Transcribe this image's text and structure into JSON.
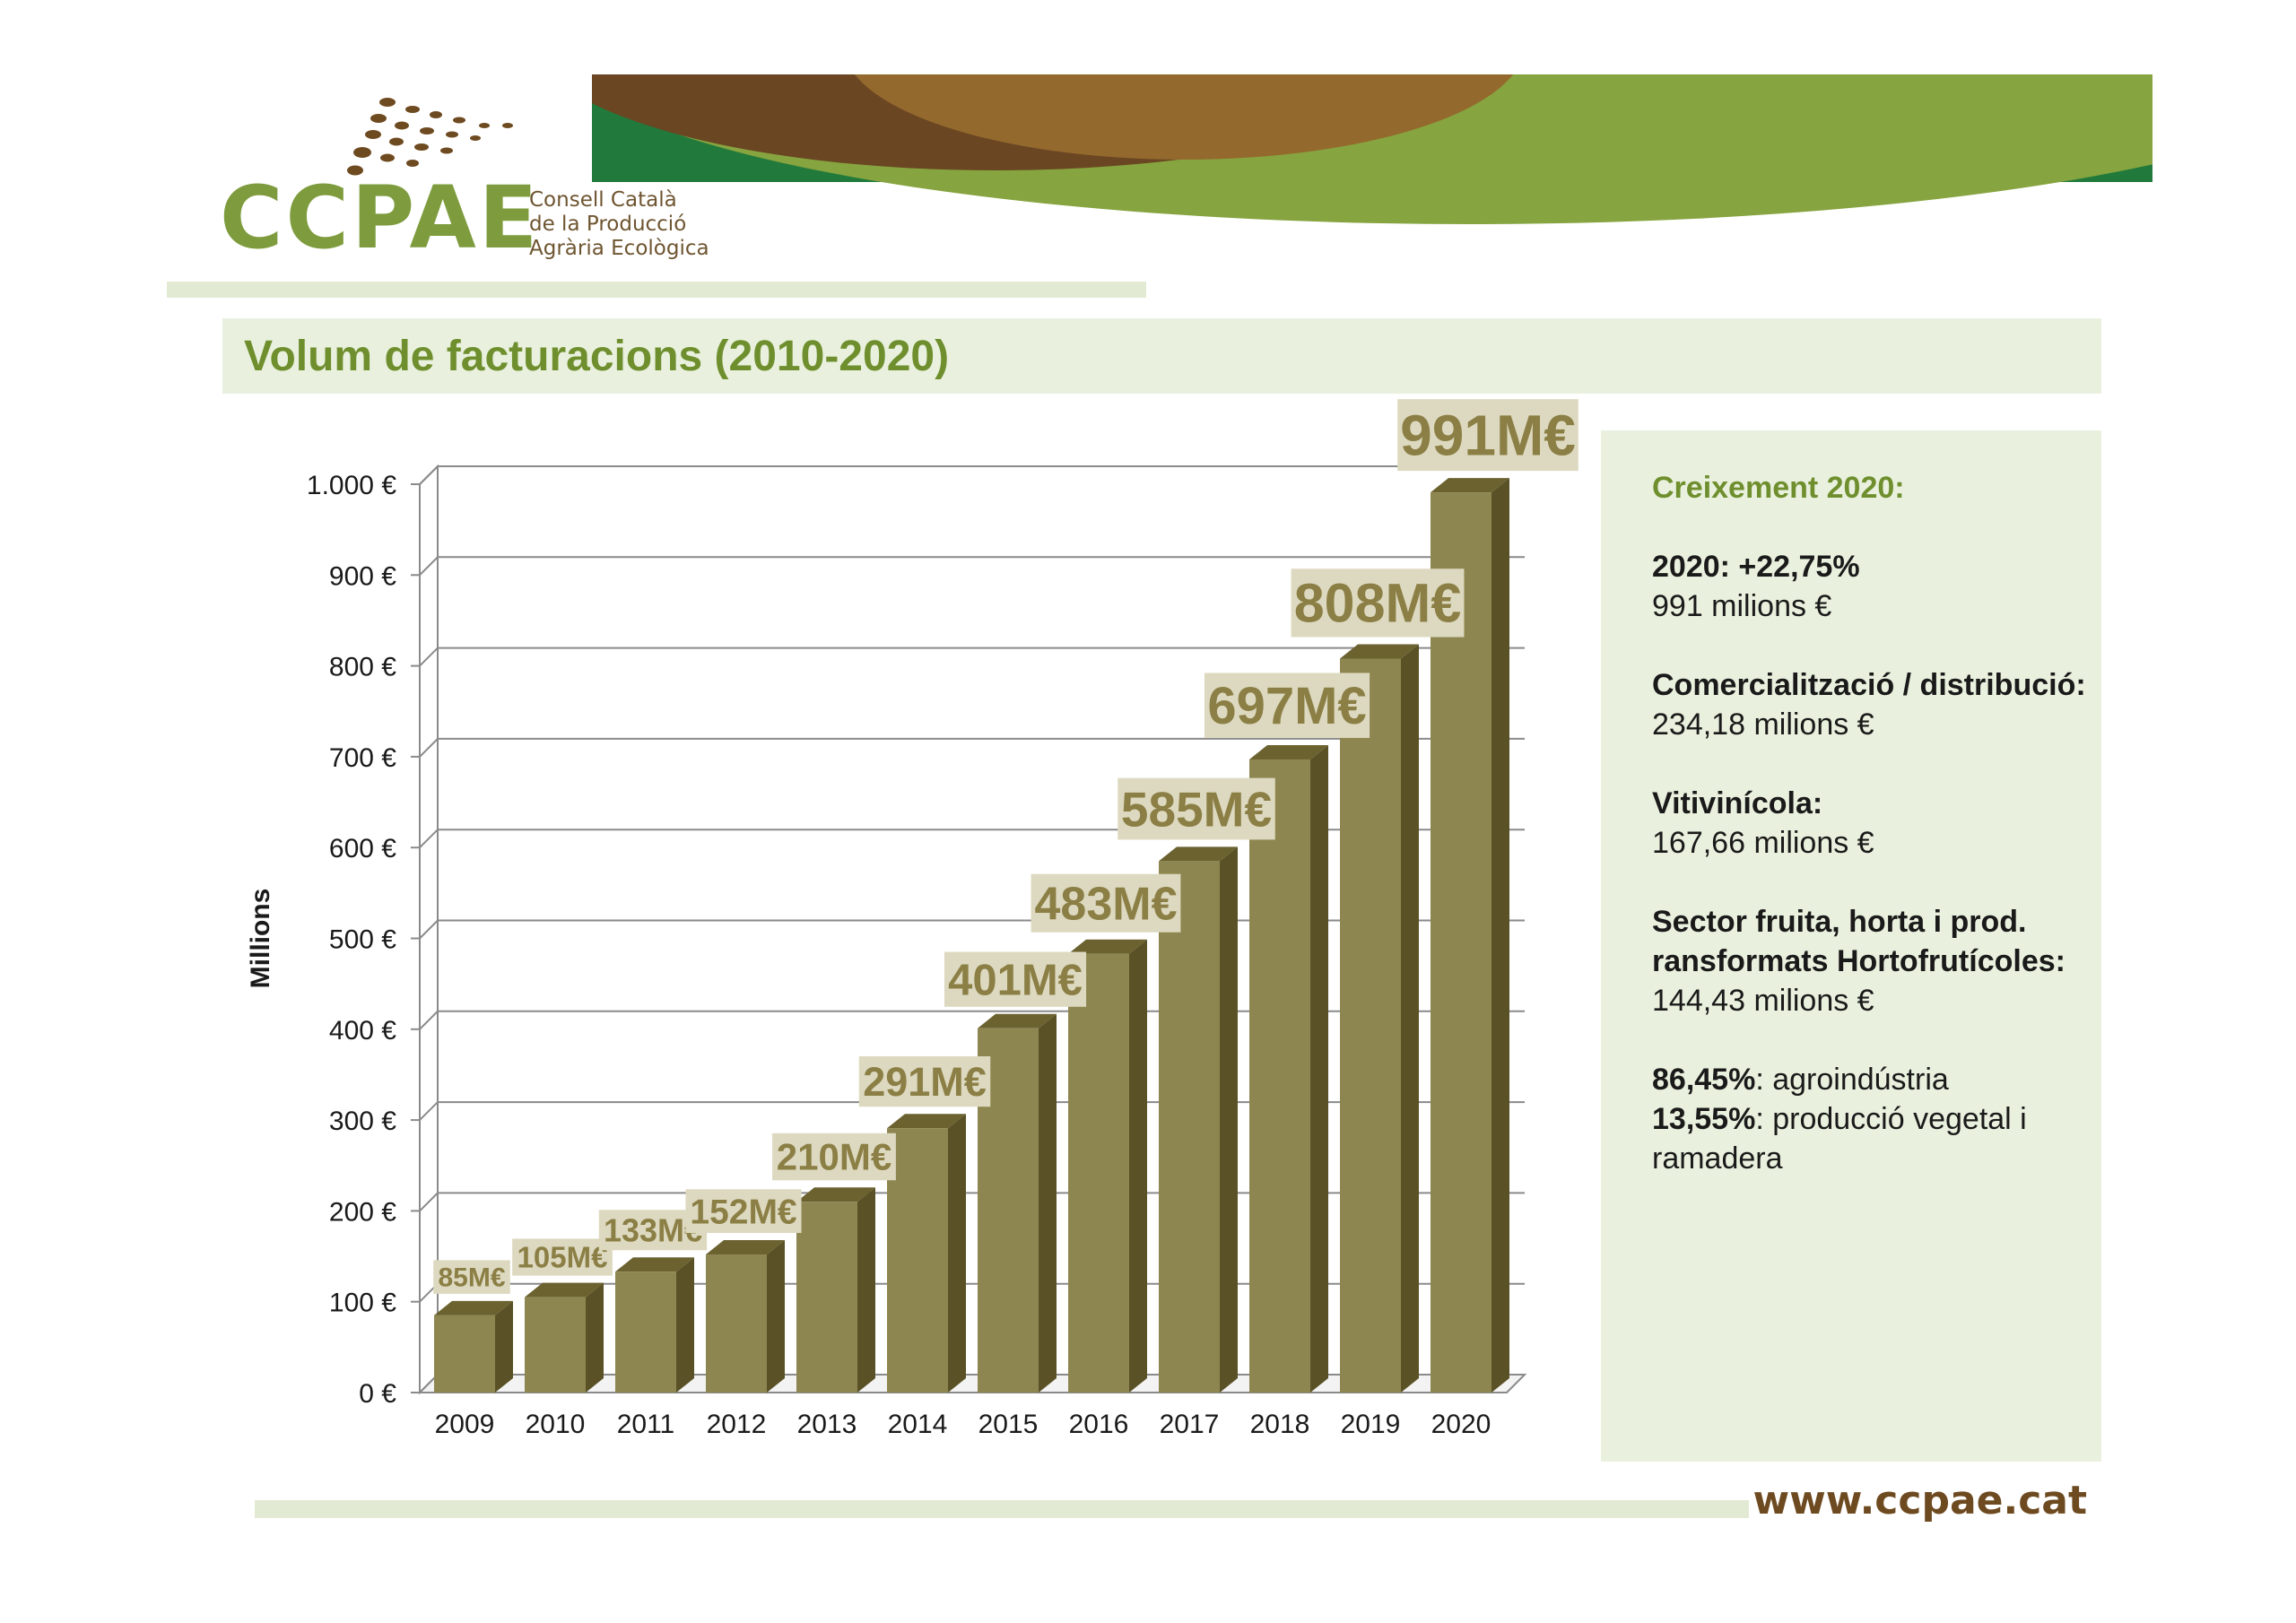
{
  "brand": {
    "acronym": "CCPAE",
    "subtitle_lines": [
      "Consell Català",
      "de la Producció",
      "Agrària Ecològica"
    ],
    "website": "www.ccpae.cat"
  },
  "colors": {
    "accent_green": "#7e9c3d",
    "dark_green": "#217a3c",
    "brown": "#6e4a20",
    "bar_face": "#8e8650",
    "bar_side": "#5a5226",
    "label_box": "#ddd9c0",
    "label_text": "#8b7f45",
    "panel_bg": "#e9f1de"
  },
  "page": {
    "title": "Volum de facturacions (2010-2020)"
  },
  "chart_data": {
    "type": "bar",
    "style": "3d-column",
    "categories": [
      "2009",
      "2010",
      "2011",
      "2012",
      "2013",
      "2014",
      "2015",
      "2016",
      "2017",
      "2018",
      "2019",
      "2020"
    ],
    "values": [
      85,
      105,
      133,
      152,
      210,
      291,
      401,
      483,
      585,
      697,
      808,
      991
    ],
    "data_labels": [
      "85M€",
      "105M€",
      "133M€",
      "152M€",
      "210M€",
      "291M€",
      "401M€",
      "483M€",
      "585M€",
      "697M€",
      "808M€",
      "991M€"
    ],
    "ylabel": "Millions",
    "xlabel": "",
    "ylim": [
      0,
      1000
    ],
    "yticks": [
      0,
      100,
      200,
      300,
      400,
      500,
      600,
      700,
      800,
      900,
      1000
    ],
    "ytick_labels": [
      "0 €",
      "100 €",
      "200 €",
      "300 €",
      "400 €",
      "500 €",
      "600 €",
      "700 €",
      "800 €",
      "900 €",
      "1.000 €"
    ],
    "grid": true
  },
  "info_panel": {
    "heading": "Creixement 2020:",
    "blocks": [
      {
        "title": "2020: +22,75%",
        "value": "991 milions €"
      },
      {
        "title": "Comercialització / distribució:",
        "value": "234,18 milions €"
      },
      {
        "title": "Vitivinícola:",
        "value": "167,66 milions €"
      },
      {
        "title": "Sector fruita, horta i prod. ransformats Hortofrutícoles:",
        "value": "144,43 milions €"
      }
    ],
    "split": [
      {
        "pct": "86,45%",
        "label": ": agroindústria"
      },
      {
        "pct": "13,55%",
        "label": ": producció vegetal i ramadera"
      }
    ]
  }
}
